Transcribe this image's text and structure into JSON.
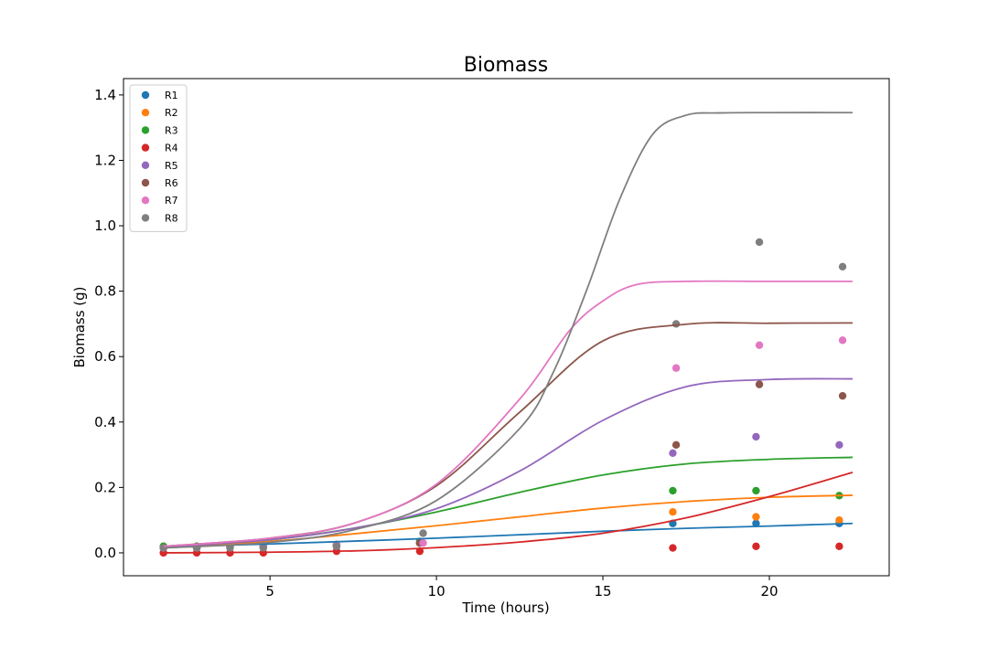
{
  "chart_data": {
    "type": "scatter",
    "title": "Biomass",
    "xlabel": "Time (hours)",
    "ylabel": "Biomass (g)",
    "xlim": [
      0.6,
      23.6
    ],
    "ylim": [
      -0.07,
      1.45
    ],
    "xticks": [
      5,
      10,
      15,
      20
    ],
    "yticks": [
      0.0,
      0.2,
      0.4,
      0.6,
      0.8,
      1.0,
      1.2,
      1.4
    ],
    "grid": false,
    "legend_position": "top-left",
    "series": [
      {
        "name": "R1",
        "color": "#1f77b4",
        "points": [
          [
            1.8,
            0.02
          ],
          [
            2.8,
            0.02
          ],
          [
            3.8,
            0.02
          ],
          [
            4.8,
            0.02
          ],
          [
            7.0,
            0.025
          ],
          [
            9.5,
            0.03
          ],
          [
            17.1,
            0.09
          ],
          [
            19.6,
            0.09
          ],
          [
            22.1,
            0.09
          ]
        ],
        "fit_line": [
          [
            1.8,
            0.019
          ],
          [
            5,
            0.027
          ],
          [
            10,
            0.045
          ],
          [
            15,
            0.066
          ],
          [
            17.5,
            0.075
          ],
          [
            20,
            0.082
          ],
          [
            22.5,
            0.09
          ]
        ]
      },
      {
        "name": "R2",
        "color": "#ff7f0e",
        "points": [
          [
            1.8,
            0.02
          ],
          [
            2.8,
            0.02
          ],
          [
            3.8,
            0.02
          ],
          [
            4.8,
            0.02
          ],
          [
            7.0,
            0.02
          ],
          [
            9.5,
            0.03
          ],
          [
            17.1,
            0.125
          ],
          [
            19.6,
            0.11
          ],
          [
            22.1,
            0.1
          ]
        ],
        "fit_line": [
          [
            1.8,
            0.017
          ],
          [
            5,
            0.035
          ],
          [
            7.5,
            0.058
          ],
          [
            10,
            0.083
          ],
          [
            12.5,
            0.11
          ],
          [
            15,
            0.137
          ],
          [
            17.5,
            0.157
          ],
          [
            20,
            0.17
          ],
          [
            22.5,
            0.176
          ]
        ]
      },
      {
        "name": "R3",
        "color": "#2ca02c",
        "points": [
          [
            1.8,
            0.02
          ],
          [
            2.8,
            0.02
          ],
          [
            3.8,
            0.02
          ],
          [
            4.8,
            0.02
          ],
          [
            7.0,
            0.025
          ],
          [
            9.5,
            0.035
          ],
          [
            17.1,
            0.19
          ],
          [
            19.6,
            0.19
          ],
          [
            22.1,
            0.175
          ]
        ],
        "fit_line": [
          [
            1.8,
            0.02
          ],
          [
            5,
            0.04
          ],
          [
            7.5,
            0.075
          ],
          [
            10,
            0.125
          ],
          [
            12.5,
            0.185
          ],
          [
            15,
            0.238
          ],
          [
            17.5,
            0.272
          ],
          [
            20,
            0.286
          ],
          [
            22.5,
            0.292
          ]
        ]
      },
      {
        "name": "R4",
        "color": "#d62728",
        "points": [
          [
            1.8,
            0.0
          ],
          [
            2.8,
            0.0
          ],
          [
            3.8,
            0.0
          ],
          [
            4.8,
            0.0
          ],
          [
            7.0,
            0.005
          ],
          [
            9.5,
            0.005
          ],
          [
            17.1,
            0.015
          ],
          [
            19.6,
            0.02
          ],
          [
            22.1,
            0.02
          ]
        ],
        "fit_line": [
          [
            1.8,
            0.0
          ],
          [
            5,
            0.002
          ],
          [
            7.5,
            0.006
          ],
          [
            10,
            0.016
          ],
          [
            12.5,
            0.033
          ],
          [
            15,
            0.06
          ],
          [
            17.5,
            0.107
          ],
          [
            20,
            0.172
          ],
          [
            22.5,
            0.246
          ]
        ]
      },
      {
        "name": "R5",
        "color": "#9467bd",
        "points": [
          [
            1.8,
            0.015
          ],
          [
            2.8,
            0.015
          ],
          [
            3.8,
            0.02
          ],
          [
            4.8,
            0.02
          ],
          [
            7.0,
            0.02
          ],
          [
            9.5,
            0.03
          ],
          [
            17.1,
            0.305
          ],
          [
            19.6,
            0.355
          ],
          [
            22.1,
            0.33
          ]
        ],
        "fit_line": [
          [
            1.8,
            0.018
          ],
          [
            5,
            0.04
          ],
          [
            7.5,
            0.075
          ],
          [
            10,
            0.135
          ],
          [
            12.5,
            0.25
          ],
          [
            15,
            0.405
          ],
          [
            17.5,
            0.508
          ],
          [
            20,
            0.53
          ],
          [
            22.5,
            0.532
          ]
        ]
      },
      {
        "name": "R6",
        "color": "#8c564b",
        "points": [
          [
            1.8,
            0.015
          ],
          [
            2.8,
            0.015
          ],
          [
            3.8,
            0.02
          ],
          [
            4.8,
            0.02
          ],
          [
            7.0,
            0.025
          ],
          [
            9.5,
            0.03
          ],
          [
            17.2,
            0.33
          ],
          [
            19.7,
            0.515
          ],
          [
            22.2,
            0.48
          ]
        ],
        "fit_line": [
          [
            1.8,
            0.02
          ],
          [
            5,
            0.045
          ],
          [
            7.5,
            0.09
          ],
          [
            10,
            0.205
          ],
          [
            12.5,
            0.43
          ],
          [
            15,
            0.648
          ],
          [
            17.5,
            0.699
          ],
          [
            20,
            0.702
          ],
          [
            22.5,
            0.703
          ]
        ]
      },
      {
        "name": "R7",
        "color": "#e377c2",
        "points": [
          [
            1.8,
            0.015
          ],
          [
            2.8,
            0.015
          ],
          [
            3.8,
            0.02
          ],
          [
            4.8,
            0.02
          ],
          [
            7.0,
            0.025
          ],
          [
            9.6,
            0.03
          ],
          [
            17.2,
            0.565
          ],
          [
            19.7,
            0.635
          ],
          [
            22.2,
            0.65
          ]
        ],
        "fit_line": [
          [
            1.8,
            0.02
          ],
          [
            5,
            0.045
          ],
          [
            7.5,
            0.09
          ],
          [
            10,
            0.21
          ],
          [
            12.5,
            0.47
          ],
          [
            14,
            0.68
          ],
          [
            15,
            0.77
          ],
          [
            16,
            0.82
          ],
          [
            17.5,
            0.83
          ],
          [
            20,
            0.83
          ],
          [
            22.5,
            0.83
          ]
        ]
      },
      {
        "name": "R8",
        "color": "#7f7f7f",
        "points": [
          [
            1.8,
            0.015
          ],
          [
            2.8,
            0.015
          ],
          [
            3.8,
            0.015
          ],
          [
            4.8,
            0.015
          ],
          [
            7.0,
            0.02
          ],
          [
            9.6,
            0.06
          ],
          [
            17.2,
            0.7
          ],
          [
            19.7,
            0.95
          ],
          [
            22.2,
            0.875
          ]
        ],
        "fit_line": [
          [
            1.8,
            0.015
          ],
          [
            5,
            0.032
          ],
          [
            7.5,
            0.07
          ],
          [
            10,
            0.16
          ],
          [
            12.5,
            0.38
          ],
          [
            13.5,
            0.55
          ],
          [
            14.5,
            0.8
          ],
          [
            15.5,
            1.08
          ],
          [
            16.5,
            1.28
          ],
          [
            17.5,
            1.338
          ],
          [
            18.5,
            1.345
          ],
          [
            20,
            1.346
          ],
          [
            22.5,
            1.346
          ]
        ]
      }
    ]
  }
}
